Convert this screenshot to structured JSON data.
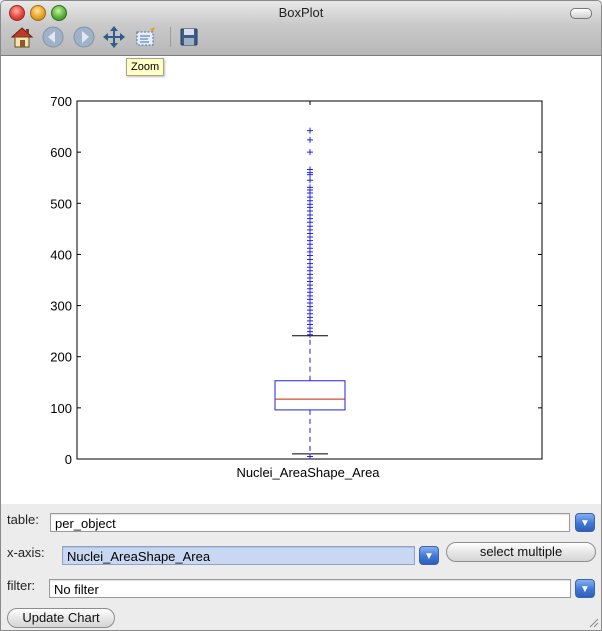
{
  "window": {
    "title": "BoxPlot"
  },
  "toolbar": {
    "items": [
      "home-icon",
      "back-arrow-icon",
      "forward-arrow-icon",
      "pan-move-icon",
      "zoom-rectangle-icon",
      "save-disk-icon"
    ],
    "tooltip": "Zoom"
  },
  "chart_data": {
    "type": "box",
    "categories": [
      "Nuclei_AreaShape_Area"
    ],
    "ylim": [
      0,
      700
    ],
    "yticks": [
      "0",
      "100",
      "200",
      "300",
      "400",
      "500",
      "600",
      "700"
    ],
    "box": {
      "whisker_low": 10,
      "q1": 96,
      "median": 117,
      "q3": 153,
      "whisker_high": 241
    },
    "outliers": [
      642,
      624,
      600,
      566,
      560,
      556,
      545,
      531,
      526,
      520,
      512,
      505,
      498,
      492,
      485,
      477,
      470,
      463,
      455,
      448,
      441,
      434,
      427,
      420,
      412,
      405,
      398,
      390,
      382,
      375,
      368,
      361,
      354,
      347,
      340,
      333,
      326,
      319,
      312,
      305,
      298,
      291,
      284,
      277,
      270,
      263,
      256,
      249,
      243,
      5
    ],
    "colors": {
      "box": "#2222dd",
      "median": "#cc2200",
      "whisker_cap": "#000000",
      "outlier": "#2222ee"
    }
  },
  "controls": {
    "table_label": "table:",
    "table_value": "per_object",
    "xaxis_label": "x-axis:",
    "xaxis_value": "Nuclei_AreaShape_Area",
    "select_multiple_label": "select multiple",
    "filter_label": "filter:",
    "filter_value": "No filter",
    "update_label": "Update Chart"
  }
}
